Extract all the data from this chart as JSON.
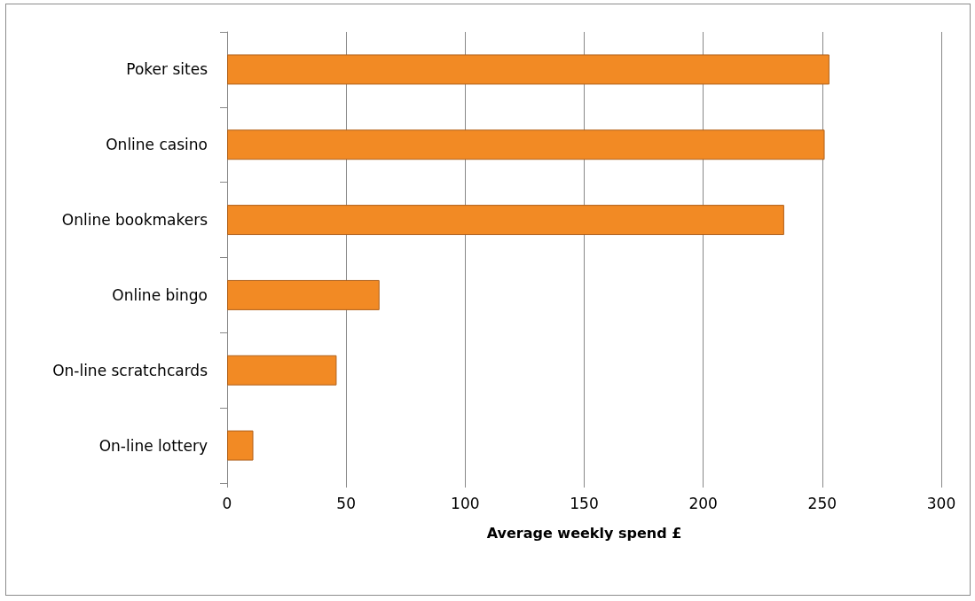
{
  "chart_data": {
    "type": "bar",
    "orientation": "horizontal",
    "xlabel": "Average weekly spend £",
    "categories": [
      "Poker sites",
      "Online casino",
      "Online bookmakers",
      "Online bingo",
      "On-line scratchcards",
      "On-line lottery"
    ],
    "values": [
      253,
      251,
      234,
      64,
      46,
      11
    ],
    "color": "#f28a24",
    "xlim": [
      0,
      300
    ],
    "xticks": [
      0,
      50,
      100,
      150,
      200,
      250,
      300
    ],
    "grid": "x"
  }
}
